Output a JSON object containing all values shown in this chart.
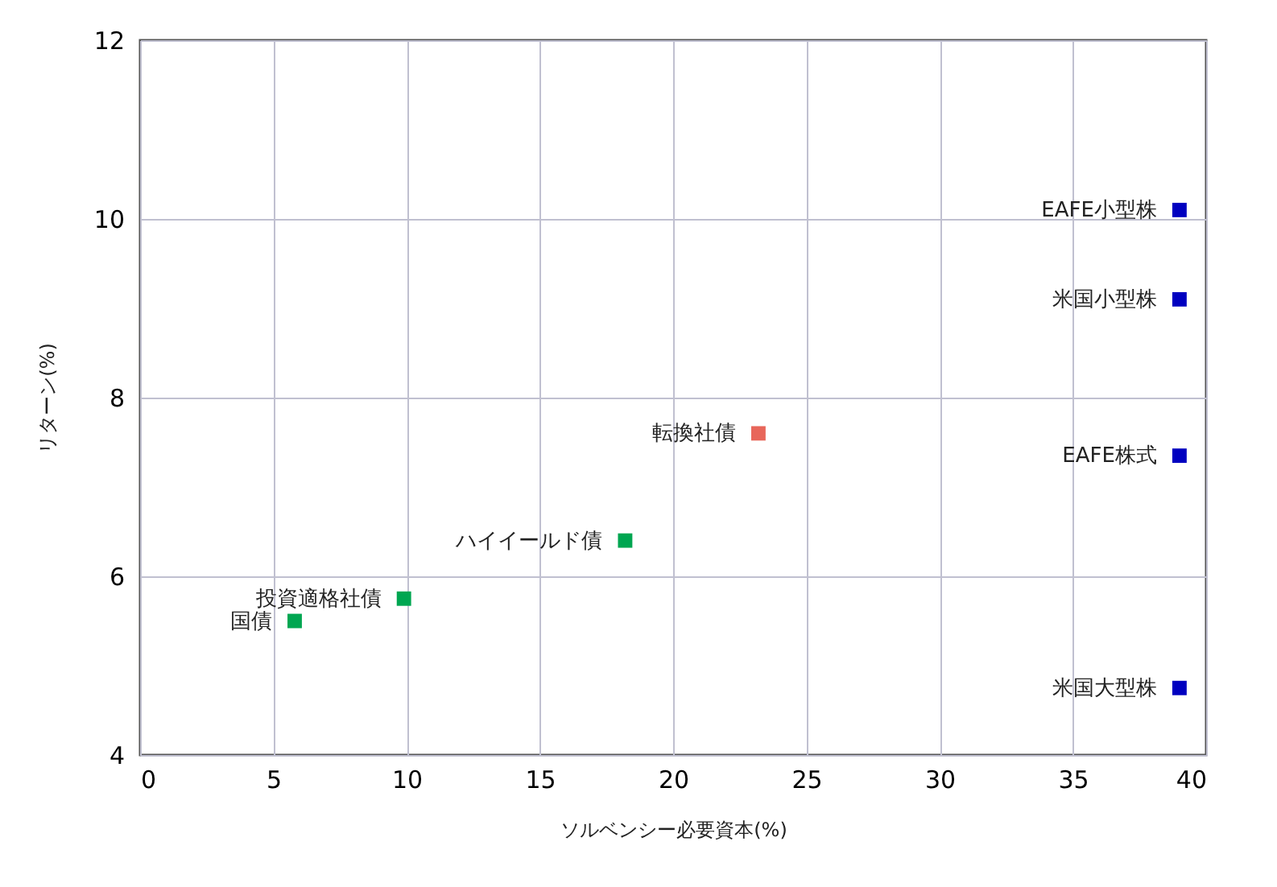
{
  "chart_data": {
    "type": "scatter",
    "xlabel": "ソルベンシー必要資本(%)",
    "ylabel": "リターン(%)",
    "xlim": [
      0,
      40
    ],
    "xticks": [
      0,
      5,
      10,
      15,
      20,
      25,
      30,
      35,
      40
    ],
    "ylim": [
      4,
      12
    ],
    "yticks": [
      4,
      6,
      8,
      10,
      12
    ],
    "grid": true,
    "marker": "square",
    "series": [
      {
        "color": "#00a651",
        "x": [
          5.8,
          9.9,
          18.2
        ],
        "values": [
          5.5,
          5.75,
          6.4
        ]
      },
      {
        "color": "#e8665a",
        "x": [
          23.2
        ],
        "values": [
          7.6
        ]
      },
      {
        "color": "#0000c0",
        "x": [
          39,
          39,
          39,
          39
        ],
        "values": [
          10.1,
          9.1,
          7.35,
          4.75
        ]
      }
    ],
    "annotations": [
      {
        "text": "国債",
        "x": 5.8,
        "y": 5.5
      },
      {
        "text": "投資適格社債",
        "x": 9.9,
        "y": 5.75
      },
      {
        "text": "ハイイールド債",
        "x": 18.2,
        "y": 6.4
      },
      {
        "text": "転換社債",
        "x": 23.2,
        "y": 7.6
      },
      {
        "text": "EAFE小型株",
        "x": 39,
        "y": 10.1
      },
      {
        "text": "米国小型株",
        "x": 39,
        "y": 9.1
      },
      {
        "text": "EAFE株式",
        "x": 39,
        "y": 7.35
      },
      {
        "text": "米国大型株",
        "x": 39,
        "y": 4.75
      }
    ]
  }
}
